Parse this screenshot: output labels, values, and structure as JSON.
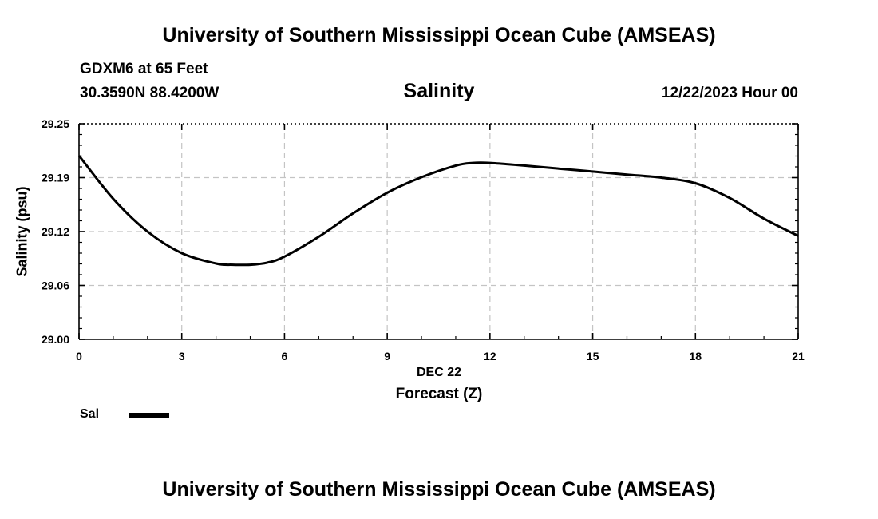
{
  "header": {
    "title": "University of Southern Mississippi Ocean Cube (AMSEAS)",
    "station": "GDXM6 at 65 Feet",
    "coordinates": "30.3590N  88.4200W",
    "parameter": "Salinity",
    "datetime": "12/22/2023 Hour 00"
  },
  "footer": {
    "title": "University of Southern Mississippi Ocean Cube (AMSEAS)"
  },
  "legend": {
    "label": "Sal"
  },
  "chart_data": {
    "type": "line",
    "title": "Salinity",
    "xlabel": "Forecast (Z)",
    "xlabel_date": "DEC 22",
    "ylabel": "Salinity (psu)",
    "xlim": [
      0,
      21
    ],
    "ylim": [
      29.0,
      29.25
    ],
    "xticks": [
      0,
      3,
      6,
      9,
      12,
      15,
      18,
      21
    ],
    "xtick_labels": [
      "0",
      "3",
      "6",
      "9",
      "12",
      "15",
      "18",
      "21"
    ],
    "yticks": [
      29.0,
      29.0625,
      29.125,
      29.1875,
      29.25
    ],
    "ytick_labels": [
      "29.00",
      "29.06",
      "29.12",
      "29.19",
      "29.25"
    ],
    "grid": true,
    "series": [
      {
        "name": "Sal",
        "color": "#000000",
        "x": [
          0,
          1,
          2,
          3,
          4,
          4.5,
          5,
          5.5,
          6,
          7,
          8,
          9,
          10,
          11,
          11.5,
          12,
          13,
          14,
          15,
          16,
          17,
          18,
          19,
          20,
          21
        ],
        "values": [
          29.213,
          29.163,
          29.125,
          29.1,
          29.088,
          29.0865,
          29.0865,
          29.089,
          29.096,
          29.119,
          29.146,
          29.17,
          29.188,
          29.2015,
          29.2045,
          29.2045,
          29.2015,
          29.198,
          29.1945,
          29.191,
          29.1875,
          29.181,
          29.164,
          29.14,
          29.12
        ]
      }
    ]
  }
}
